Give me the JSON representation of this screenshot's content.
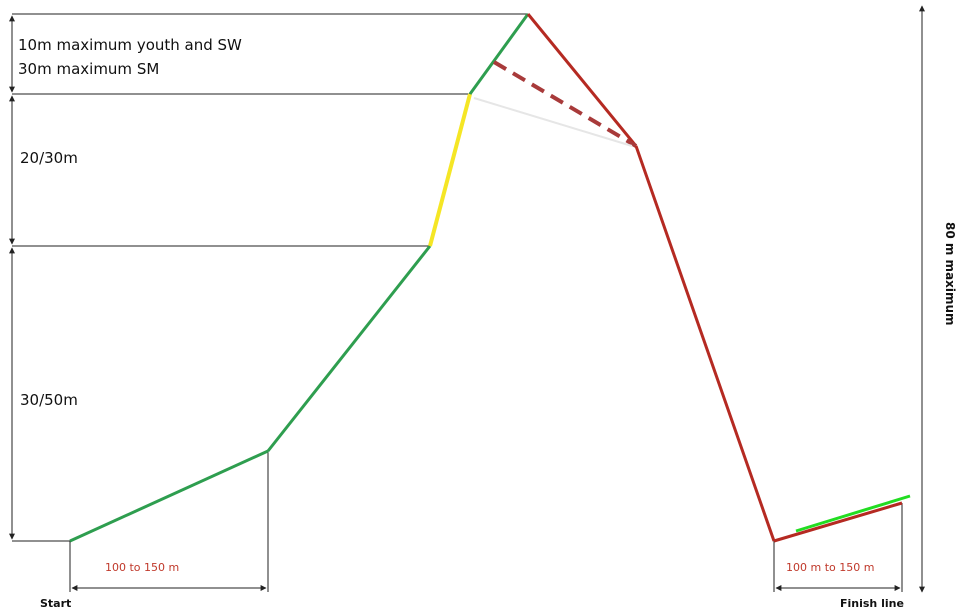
{
  "labels": {
    "top_band_line1": "10m maximum youth and SW",
    "top_band_line2": "30m maximum SM",
    "middle_band": "20/30m",
    "lower_band": "30/50m",
    "start_distance": "100 to 150 m",
    "finish_distance": "100 m to 150 m",
    "start": "Start",
    "finish": "Finish line",
    "total_height": "80 m maximum"
  },
  "colors": {
    "climb": "#2e9e4f",
    "steep_section": "#f5e625",
    "descent": "#b52a22",
    "descent_alt": "#a83a3a",
    "finish_highlight": "#22dd22",
    "guide_line": "#222222",
    "distance_text": "#c0392b"
  }
}
